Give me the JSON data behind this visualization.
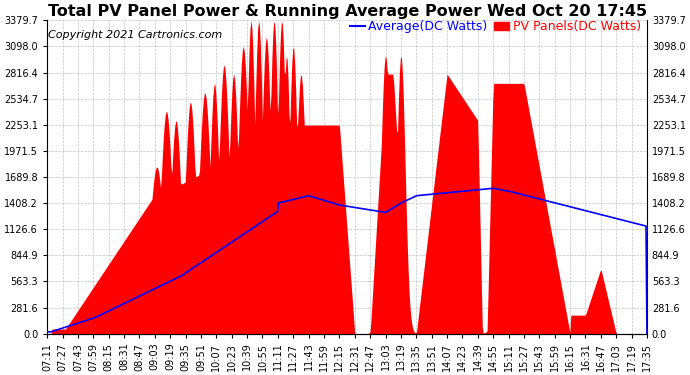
{
  "title": "Total PV Panel Power & Running Average Power Wed Oct 20 17:45",
  "copyright": "Copyright 2021 Cartronics.com",
  "legend_avg": "Average(DC Watts)",
  "legend_pv": "PV Panels(DC Watts)",
  "yticks": [
    0.0,
    281.6,
    563.3,
    844.9,
    1126.6,
    1408.2,
    1689.8,
    1971.5,
    2253.1,
    2534.7,
    2816.4,
    3098.0,
    3379.7
  ],
  "ymax": 3379.7,
  "xtick_labels": [
    "07:11",
    "07:27",
    "07:43",
    "07:59",
    "08:15",
    "08:31",
    "08:47",
    "09:03",
    "09:19",
    "09:35",
    "09:51",
    "10:07",
    "10:23",
    "10:39",
    "10:55",
    "11:11",
    "11:27",
    "11:43",
    "11:59",
    "12:15",
    "12:31",
    "12:47",
    "13:03",
    "13:19",
    "13:35",
    "13:51",
    "14:07",
    "14:23",
    "14:39",
    "14:55",
    "15:11",
    "15:27",
    "15:43",
    "15:59",
    "16:15",
    "16:31",
    "16:47",
    "17:03",
    "17:19",
    "17:35"
  ],
  "background_color": "#ffffff",
  "grid_color": "#bbbbbb",
  "pv_color": "#ff0000",
  "avg_color": "#0000ff",
  "title_color": "#000000",
  "copyright_color": "#000000",
  "title_fontsize": 11.5,
  "copyright_fontsize": 8,
  "legend_fontsize": 9,
  "tick_fontsize": 7,
  "legend_avg_color": "#0000ff",
  "legend_pv_color": "#ff0000"
}
